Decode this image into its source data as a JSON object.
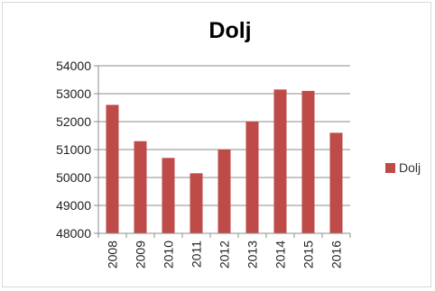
{
  "chart_data": {
    "type": "bar",
    "title": "Dolj",
    "xlabel": "",
    "ylabel": "",
    "categories": [
      "2008",
      "2009",
      "2010",
      "2011",
      "2012",
      "2013",
      "2014",
      "2015",
      "2016"
    ],
    "series": [
      {
        "name": "Dolj",
        "values": [
          52600,
          51300,
          50700,
          50150,
          51000,
          52000,
          53150,
          53100,
          51600
        ],
        "color": "#be4b48"
      }
    ],
    "ylim": [
      48000,
      54000
    ],
    "yticks": [
      "48000",
      "49000",
      "50000",
      "51000",
      "52000",
      "53000",
      "54000"
    ],
    "grid": true,
    "legend": "right"
  }
}
